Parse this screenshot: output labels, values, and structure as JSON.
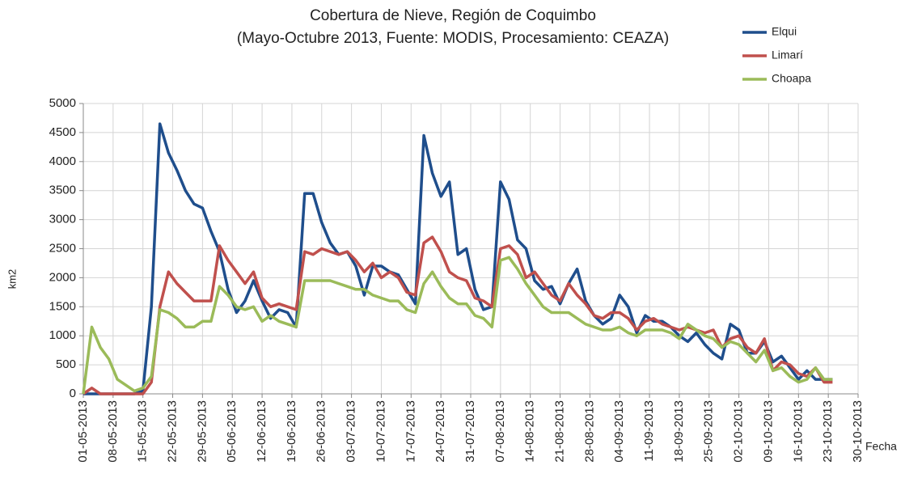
{
  "chart_data": {
    "type": "line",
    "title": "Cobertura de Nieve, Región de Coquimbo",
    "subtitle": "(Mayo-Octubre 2013,  Fuente:  MODIS,  Procesamiento:  CEAZA)",
    "y_label": "km2",
    "x_label": "Fecha",
    "x": [
      "01-05-2013",
      "03-05-2013",
      "05-05-2013",
      "07-05-2013",
      "09-05-2013",
      "11-05-2013",
      "13-05-2013",
      "15-05-2013",
      "17-05-2013",
      "19-05-2013",
      "21-05-2013",
      "23-05-2013",
      "25-05-2013",
      "27-05-2013",
      "29-05-2013",
      "31-05-2013",
      "02-06-2013",
      "04-06-2013",
      "06-06-2013",
      "08-06-2013",
      "10-06-2013",
      "12-06-2013",
      "14-06-2013",
      "16-06-2013",
      "18-06-2013",
      "20-06-2013",
      "22-06-2013",
      "24-06-2013",
      "26-06-2013",
      "28-06-2013",
      "30-06-2013",
      "02-07-2013",
      "04-07-2013",
      "06-07-2013",
      "08-07-2013",
      "10-07-2013",
      "12-07-2013",
      "14-07-2013",
      "16-07-2013",
      "18-07-2013",
      "20-07-2013",
      "22-07-2013",
      "24-07-2013",
      "26-07-2013",
      "28-07-2013",
      "30-07-2013",
      "01-08-2013",
      "03-08-2013",
      "05-08-2013",
      "07-08-2013",
      "09-08-2013",
      "11-08-2013",
      "13-08-2013",
      "15-08-2013",
      "17-08-2013",
      "19-08-2013",
      "21-08-2013",
      "23-08-2013",
      "25-08-2013",
      "27-08-2013",
      "29-08-2013",
      "31-08-2013",
      "02-09-2013",
      "04-09-2013",
      "06-09-2013",
      "08-09-2013",
      "10-09-2013",
      "12-09-2013",
      "14-09-2013",
      "16-09-2013",
      "18-09-2013",
      "20-09-2013",
      "22-09-2013",
      "24-09-2013",
      "26-09-2013",
      "28-09-2013",
      "30-09-2013",
      "02-10-2013",
      "04-10-2013",
      "06-10-2013",
      "08-10-2013",
      "10-10-2013",
      "12-10-2013",
      "14-10-2013",
      "16-10-2013",
      "18-10-2013",
      "20-10-2013",
      "22-10-2013",
      "24-10-2013"
    ],
    "series": [
      {
        "name": "Elqui",
        "color": "#1f4e8c",
        "values": [
          0,
          0,
          0,
          0,
          0,
          0,
          0,
          50,
          1500,
          4650,
          4150,
          3850,
          3500,
          3270,
          3200,
          2800,
          2450,
          1800,
          1400,
          1600,
          1950,
          1600,
          1300,
          1450,
          1400,
          1150,
          3450,
          3450,
          2950,
          2600,
          2400,
          2450,
          2200,
          1700,
          2200,
          2200,
          2100,
          2050,
          1800,
          1550,
          4450,
          3800,
          3400,
          3650,
          2400,
          2500,
          1800,
          1450,
          1500,
          3650,
          3350,
          2650,
          2500,
          1950,
          1800,
          1850,
          1550,
          1900,
          2150,
          1600,
          1350,
          1200,
          1300,
          1700,
          1500,
          1050,
          1350,
          1250,
          1250,
          1150,
          1000,
          900,
          1050,
          850,
          700,
          600,
          1200,
          1100,
          700,
          700,
          900,
          550,
          650,
          450,
          250,
          400,
          250,
          250,
          250
        ]
      },
      {
        "name": "Limarí",
        "color": "#c0504d",
        "values": [
          0,
          100,
          0,
          0,
          0,
          0,
          0,
          0,
          200,
          1500,
          2100,
          1900,
          1750,
          1600,
          1600,
          1600,
          2550,
          2300,
          2100,
          1900,
          2100,
          1650,
          1500,
          1550,
          1500,
          1450,
          2450,
          2400,
          2500,
          2450,
          2400,
          2450,
          2300,
          2100,
          2250,
          2000,
          2100,
          2000,
          1750,
          1700,
          2600,
          2700,
          2450,
          2100,
          2000,
          1950,
          1650,
          1600,
          1500,
          2500,
          2550,
          2400,
          2000,
          2100,
          1900,
          1700,
          1600,
          1900,
          1700,
          1550,
          1350,
          1300,
          1400,
          1400,
          1300,
          1100,
          1250,
          1300,
          1200,
          1150,
          1100,
          1150,
          1100,
          1050,
          1100,
          800,
          950,
          1000,
          800,
          700,
          950,
          400,
          550,
          500,
          350,
          300,
          450,
          200,
          200
        ]
      },
      {
        "name": "Choapa",
        "color": "#9bbb59",
        "values": [
          0,
          1150,
          800,
          600,
          250,
          150,
          50,
          100,
          300,
          1450,
          1400,
          1300,
          1150,
          1150,
          1250,
          1250,
          1850,
          1700,
          1500,
          1450,
          1500,
          1250,
          1350,
          1250,
          1200,
          1150,
          1950,
          1950,
          1950,
          1950,
          1900,
          1850,
          1800,
          1800,
          1700,
          1650,
          1600,
          1600,
          1450,
          1400,
          1900,
          2100,
          1850,
          1650,
          1550,
          1550,
          1350,
          1300,
          1150,
          2300,
          2350,
          2150,
          1900,
          1700,
          1500,
          1400,
          1400,
          1400,
          1300,
          1200,
          1150,
          1100,
          1100,
          1150,
          1050,
          1000,
          1100,
          1100,
          1100,
          1050,
          950,
          1200,
          1100,
          1000,
          950,
          800,
          900,
          850,
          700,
          550,
          750,
          400,
          450,
          300,
          200,
          250,
          450,
          250,
          250
        ]
      }
    ],
    "xlim": [
      "01-05-2013",
      "30-10-2013"
    ],
    "xticks": [
      "01-05-2013",
      "08-05-2013",
      "15-05-2013",
      "22-05-2013",
      "29-05-2013",
      "05-06-2013",
      "12-06-2013",
      "19-06-2013",
      "26-06-2013",
      "03-07-2013",
      "10-07-2013",
      "17-07-2013",
      "24-07-2013",
      "31-07-2013",
      "07-08-2013",
      "14-08-2013",
      "21-08-2013",
      "28-08-2013",
      "04-09-2013",
      "11-09-2013",
      "18-09-2013",
      "25-09-2013",
      "02-10-2013",
      "09-10-2013",
      "16-10-2013",
      "23-10-2013",
      "30-10-2013"
    ],
    "ylim": [
      0,
      5000
    ],
    "yticks": [
      0,
      500,
      1000,
      1500,
      2000,
      2500,
      3000,
      3500,
      4000,
      4500,
      5000
    ],
    "grid": true,
    "legend": "top-right"
  }
}
